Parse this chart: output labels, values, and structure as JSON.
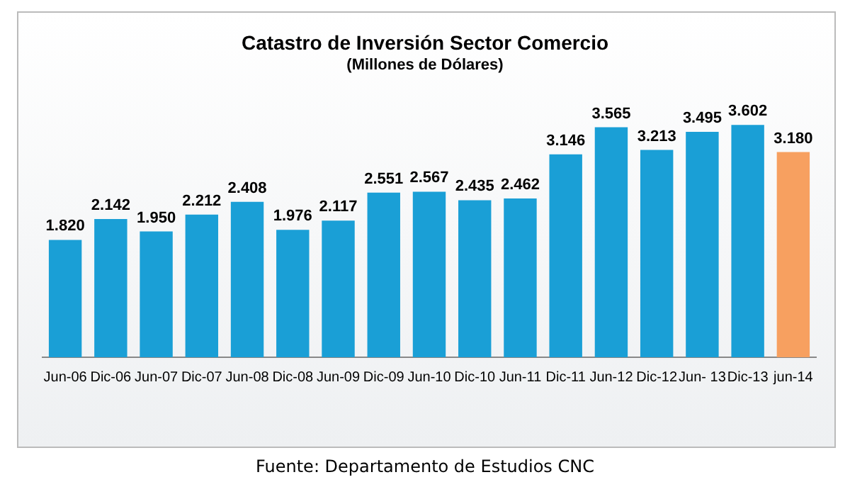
{
  "chart_data": {
    "type": "bar",
    "title": "Catastro de Inversión Sector Comercio",
    "subtitle": "(Millones de Dólares)",
    "categories": [
      "Jun-06",
      "Dic-06",
      "Jun-07",
      "Dic-07",
      "Jun-08",
      "Dic-08",
      "Jun-09",
      "Dic-09",
      "Jun-10",
      "Dic-10",
      "Jun-11",
      "Dic-11",
      "Jun-12",
      "Dic-12",
      "Jun- 13",
      "Dic-13",
      "jun-14"
    ],
    "values": [
      1820,
      2142,
      1950,
      2212,
      2408,
      1976,
      2117,
      2551,
      2567,
      2435,
      2462,
      3146,
      3565,
      3213,
      3495,
      3602,
      3180
    ],
    "value_labels": [
      "1.820",
      "2.142",
      "1.950",
      "2.212",
      "2.408",
      "1.976",
      "2.117",
      "2.551",
      "2.567",
      "2.435",
      "2.462",
      "3.146",
      "3.565",
      "3.213",
      "3.495",
      "3.602",
      "3.180"
    ],
    "colors": [
      "#1a9fd6",
      "#1a9fd6",
      "#1a9fd6",
      "#1a9fd6",
      "#1a9fd6",
      "#1a9fd6",
      "#1a9fd6",
      "#1a9fd6",
      "#1a9fd6",
      "#1a9fd6",
      "#1a9fd6",
      "#1a9fd6",
      "#1a9fd6",
      "#1a9fd6",
      "#1a9fd6",
      "#1a9fd6",
      "#f7a060"
    ],
    "tick_labels": "x",
    "grid": false,
    "legend": false,
    "annotations": [
      "Fuente: Departamento de Estudios CNC"
    ]
  }
}
